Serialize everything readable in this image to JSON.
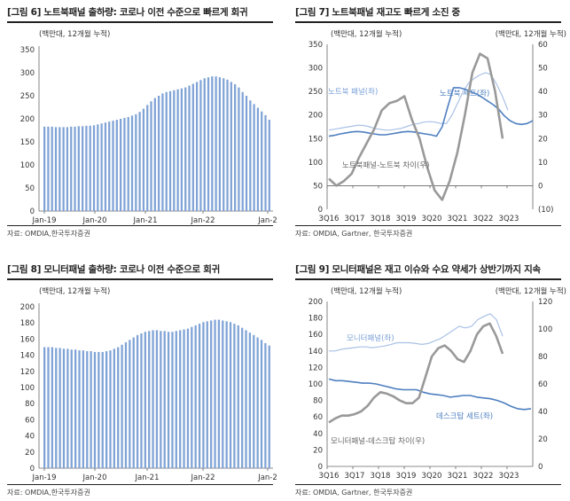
{
  "chart_data": [
    {
      "type": "bar",
      "title": "[그림 6] 노트북패널 출하량: 코로나 이전 수준으로 빠르게 회귀",
      "unit_note": "(백만대, 12개월 누적)",
      "source": "자료: OMDIA,한국투자증권",
      "ylim": [
        0,
        350
      ],
      "yticks": [
        0,
        50,
        100,
        150,
        200,
        250,
        300,
        350
      ],
      "xtick_labels": [
        "Jan-19",
        "Jan-20",
        "Jan-21",
        "Jan-22",
        "Jan-2"
      ],
      "bar_color": "#7fa3d6",
      "values": [
        183,
        183,
        183,
        182,
        182,
        182,
        182,
        183,
        183,
        184,
        184,
        185,
        185,
        186,
        188,
        190,
        192,
        194,
        196,
        198,
        200,
        202,
        204,
        207,
        210,
        215,
        222,
        230,
        238,
        245,
        250,
        255,
        258,
        260,
        262,
        264,
        266,
        268,
        272,
        276,
        280,
        284,
        288,
        290,
        292,
        292,
        290,
        288,
        285,
        280,
        275,
        268,
        258,
        250,
        240,
        232,
        224,
        216,
        208,
        198
      ]
    },
    {
      "type": "line",
      "title": "[그림 7] 노트북패널 재고도 빠르게 소진 중",
      "unit_note_left": "(백만대, 12개월 누적)",
      "unit_note_right": "(백만대, 12개월 누적)",
      "source": "자료: OMDIA, Gartner, 한국투자증권",
      "ylim_left": [
        0,
        350
      ],
      "yticks_left": [
        0,
        50,
        100,
        150,
        200,
        250,
        300,
        350
      ],
      "ylim_right": [
        -10,
        60
      ],
      "yticks_right": [
        "(10)",
        "0",
        "10",
        "20",
        "30",
        "40",
        "50",
        "60"
      ],
      "yticks_right_values": [
        -10,
        0,
        10,
        20,
        30,
        40,
        50,
        60
      ],
      "xtick_labels": [
        "3Q16",
        "3Q17",
        "3Q18",
        "3Q19",
        "3Q20",
        "3Q21",
        "3Q22",
        "3Q23"
      ],
      "series": [
        {
          "name": "노트북 패널(좌)",
          "axis": "left",
          "color": "#a9c1e6",
          "width": 1.2,
          "values": [
            168,
            170,
            172,
            174,
            176,
            178,
            178,
            176,
            172,
            170,
            168,
            168,
            170,
            172,
            176,
            180,
            182,
            185,
            186,
            185,
            182,
            182,
            200,
            225,
            250,
            268,
            278,
            285,
            290,
            285,
            265,
            240,
            210
          ]
        },
        {
          "name": "노트북 세트(좌)",
          "axis": "left",
          "color": "#4e7fc0",
          "width": 1.6,
          "values": [
            155,
            157,
            160,
            162,
            164,
            165,
            164,
            162,
            160,
            158,
            158,
            160,
            162,
            164,
            165,
            164,
            162,
            160,
            158,
            155,
            175,
            218,
            258,
            258,
            255,
            250,
            245,
            238,
            230,
            222,
            212,
            198,
            188,
            182,
            180,
            182,
            188
          ]
        },
        {
          "name": "노트북패널-노트북 차이(우)",
          "axis": "right",
          "color": "#999999",
          "width": 2.6,
          "values": [
            3,
            0,
            2,
            5,
            12,
            18,
            24,
            32,
            35,
            36,
            38,
            28,
            20,
            8,
            -2,
            -6,
            2,
            14,
            30,
            48,
            56,
            54,
            40,
            20
          ]
        }
      ]
    },
    {
      "type": "bar",
      "title": "[그림 8] 모니터패널 출하량: 코로나 이전 수준으로 회귀",
      "unit_note": "(백만대, 12개월 누적)",
      "source": "자료: OMDIA,한국투자증권",
      "ylim": [
        0,
        200
      ],
      "yticks": [
        0,
        20,
        40,
        60,
        80,
        100,
        120,
        140,
        160,
        180,
        200
      ],
      "xtick_labels": [
        "Jan-19",
        "Jan-20",
        "Jan-21",
        "Jan-22",
        "Jan-2"
      ],
      "bar_color": "#7fa3d6",
      "values": [
        150,
        150,
        150,
        149,
        149,
        148,
        148,
        147,
        147,
        146,
        146,
        145,
        145,
        144,
        144,
        144,
        145,
        146,
        148,
        150,
        153,
        156,
        159,
        162,
        165,
        167,
        169,
        170,
        171,
        171,
        170,
        170,
        169,
        169,
        170,
        171,
        172,
        173,
        175,
        177,
        179,
        181,
        182,
        183,
        184,
        184,
        183,
        182,
        181,
        179,
        177,
        174,
        171,
        168,
        165,
        162,
        159,
        155,
        152
      ]
    },
    {
      "type": "line",
      "title": "[그림 9] 모니터패널은 재고 이슈와 수요 약세가 상반기까지 지속",
      "unit_note_left": "(백만대, 12개월 누적)",
      "unit_note_right": "(백만대, 12개월 누적)",
      "source": "자료: OMDIA, Gartner, 한국투자증권",
      "ylim_left": [
        0,
        200
      ],
      "yticks_left": [
        0,
        20,
        40,
        60,
        80,
        100,
        120,
        140,
        160,
        180,
        200
      ],
      "ylim_right": [
        0,
        120
      ],
      "yticks_right": [
        0,
        20,
        40,
        60,
        80,
        100,
        120
      ],
      "xtick_labels": [
        "3Q16",
        "3Q17",
        "3Q18",
        "3Q19",
        "3Q20",
        "3Q21",
        "3Q22",
        "3Q23"
      ],
      "series": [
        {
          "name": "모니터패널(좌)",
          "axis": "left",
          "color": "#a9c1e6",
          "width": 1.2,
          "values": [
            140,
            140,
            142,
            143,
            144,
            145,
            145,
            144,
            145,
            146,
            148,
            150,
            150,
            150,
            149,
            148,
            149,
            152,
            155,
            160,
            165,
            170,
            168,
            170,
            178,
            182,
            185,
            178,
            158
          ]
        },
        {
          "name": "데스크탑 세트(좌)",
          "axis": "left",
          "color": "#4e7fc0",
          "width": 1.6,
          "values": [
            106,
            104,
            104,
            103,
            102,
            101,
            101,
            100,
            98,
            96,
            94,
            93,
            93,
            93,
            90,
            88,
            87,
            86,
            84,
            85,
            86,
            86,
            84,
            83,
            82,
            80,
            77,
            73,
            70,
            69,
            70
          ]
        },
        {
          "name": "모니터패널-데스크탑 차이(우)",
          "axis": "right",
          "color": "#999999",
          "width": 2.6,
          "values": [
            32,
            35,
            37,
            37,
            38,
            40,
            44,
            50,
            54,
            53,
            51,
            48,
            46,
            46,
            50,
            65,
            80,
            86,
            88,
            84,
            78,
            76,
            84,
            96,
            102,
            104,
            95,
            82
          ]
        }
      ]
    }
  ]
}
